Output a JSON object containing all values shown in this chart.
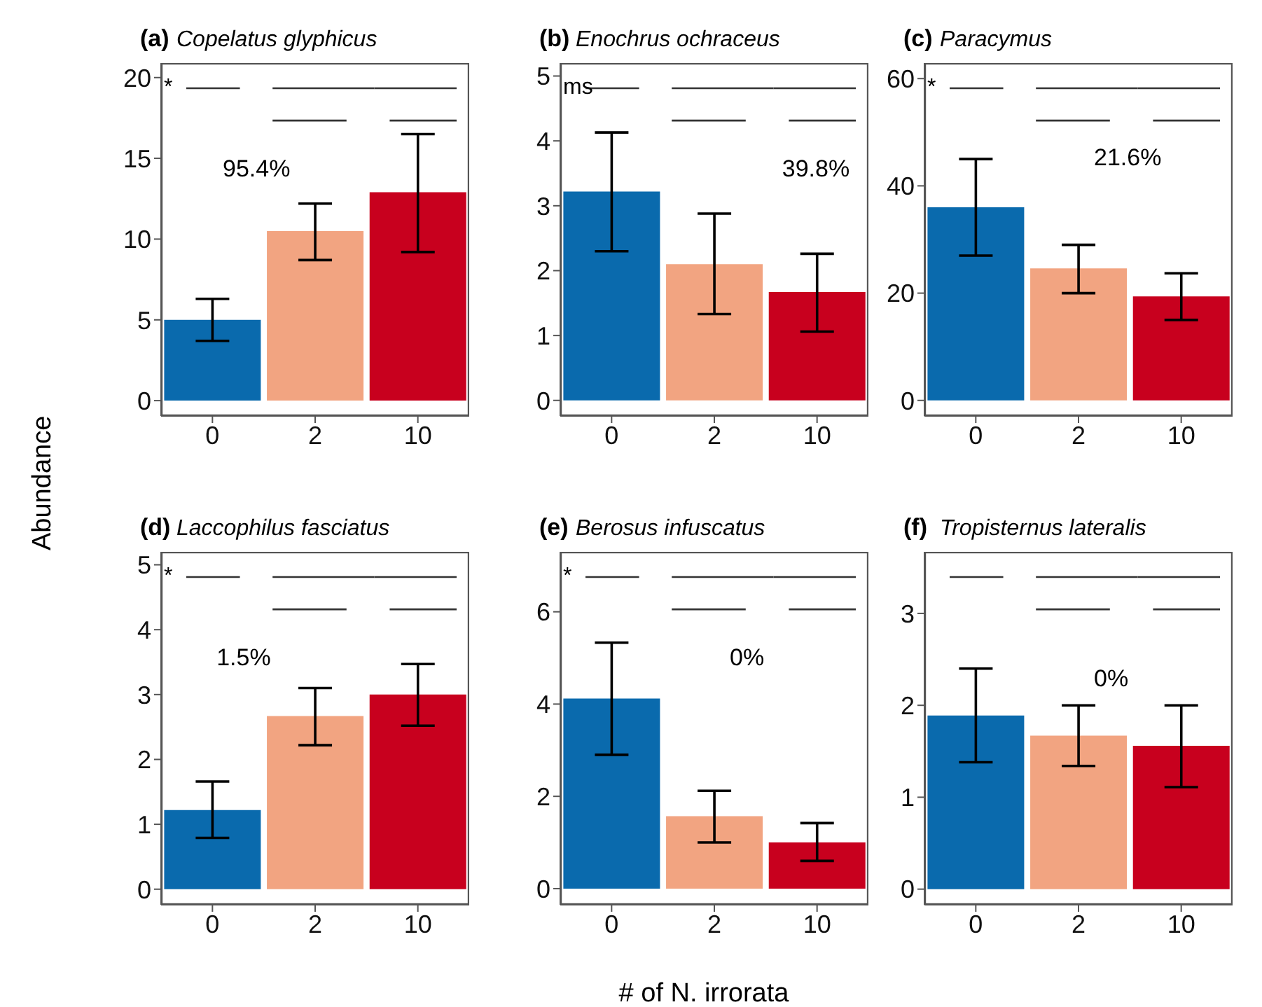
{
  "chart_data": [
    {
      "type": "bar",
      "title": "(a)",
      "subtitle": "Copelatus glyphicus",
      "ylabel": "Abundance",
      "categories": [
        "0",
        "2",
        "10"
      ],
      "colors": [
        "#0a6aad",
        "#f2a481",
        "#c8001e"
      ],
      "values": [
        5.0,
        10.5,
        12.9
      ],
      "errors": [
        [
          3.7,
          6.3
        ],
        [
          8.7,
          12.2
        ],
        [
          9.2,
          16.5
        ]
      ],
      "ylim": [
        -0.95,
        20.9
      ],
      "yticks": [
        0,
        5,
        10,
        15,
        20
      ],
      "grid": false,
      "legend": false,
      "annotations": [
        "*",
        "95.4%"
      ]
    },
    {
      "type": "bar",
      "title": "(b)",
      "subtitle": "Enochrus ochraceus",
      "categories": [
        "0",
        "2",
        "10"
      ],
      "colors": [
        "#0a6aad",
        "#f2a481",
        "#c8001e"
      ],
      "values": [
        3.22,
        2.1,
        1.67
      ],
      "errors": [
        [
          2.3,
          4.13
        ],
        [
          1.33,
          2.88
        ],
        [
          1.06,
          2.26
        ]
      ],
      "ylim": [
        -0.24,
        5.2
      ],
      "yticks": [
        0,
        1,
        2,
        3,
        4,
        5
      ],
      "grid": false,
      "legend": false,
      "annotations": [
        "ms",
        "39.8%"
      ]
    },
    {
      "type": "bar",
      "title": "(c)",
      "subtitle": "Paracymus",
      "categories": [
        "0",
        "2",
        "10"
      ],
      "colors": [
        "#0a6aad",
        "#f2a481",
        "#c8001e"
      ],
      "values": [
        36,
        24.6,
        19.4
      ],
      "errors": [
        [
          27,
          45
        ],
        [
          20,
          29
        ],
        [
          15,
          23.7
        ]
      ],
      "ylim": [
        -2.9,
        62.9
      ],
      "yticks": [
        0,
        20,
        40,
        60
      ],
      "grid": false,
      "legend": false,
      "annotations": [
        "*",
        "21.6%"
      ]
    },
    {
      "type": "bar",
      "title": "(d)",
      "subtitle": "Laccophilus fasciatus",
      "categories": [
        "0",
        "2",
        "10"
      ],
      "colors": [
        "#0a6aad",
        "#f2a481",
        "#c8001e"
      ],
      "values": [
        1.22,
        2.67,
        3.0
      ],
      "errors": [
        [
          0.79,
          1.66
        ],
        [
          2.22,
          3.1
        ],
        [
          2.52,
          3.47
        ]
      ],
      "ylim": [
        -0.24,
        5.2
      ],
      "yticks": [
        0,
        1,
        2,
        3,
        4,
        5
      ],
      "grid": false,
      "legend": false,
      "annotations": [
        "*",
        "1.5%"
      ]
    },
    {
      "type": "bar",
      "title": "(e)",
      "subtitle": "Berosus infuscatus",
      "xlabel": "# of N. irrorata",
      "categories": [
        "0",
        "2",
        "10"
      ],
      "colors": [
        "#0a6aad",
        "#f2a481",
        "#c8001e"
      ],
      "values": [
        4.12,
        1.57,
        1.0
      ],
      "errors": [
        [
          2.9,
          5.33
        ],
        [
          1.0,
          2.12
        ],
        [
          0.6,
          1.42
        ]
      ],
      "ylim": [
        -0.35,
        7.3
      ],
      "yticks": [
        0,
        2,
        4,
        6
      ],
      "grid": false,
      "legend": false,
      "annotations": [
        "*",
        "0%"
      ]
    },
    {
      "type": "bar",
      "title": "(f)",
      "subtitle": "Tropisternus lateralis",
      "categories": [
        "0",
        "2",
        "10"
      ],
      "colors": [
        "#0a6aad",
        "#f2a481",
        "#c8001e"
      ],
      "values": [
        1.89,
        1.67,
        1.56
      ],
      "errors": [
        [
          1.38,
          2.4
        ],
        [
          1.34,
          2.0
        ],
        [
          1.11,
          2.0
        ]
      ],
      "ylim": [
        -0.17,
        3.67
      ],
      "yticks": [
        0,
        1,
        2,
        3
      ],
      "grid": false,
      "legend": false,
      "annotations": [
        "0%"
      ]
    }
  ]
}
